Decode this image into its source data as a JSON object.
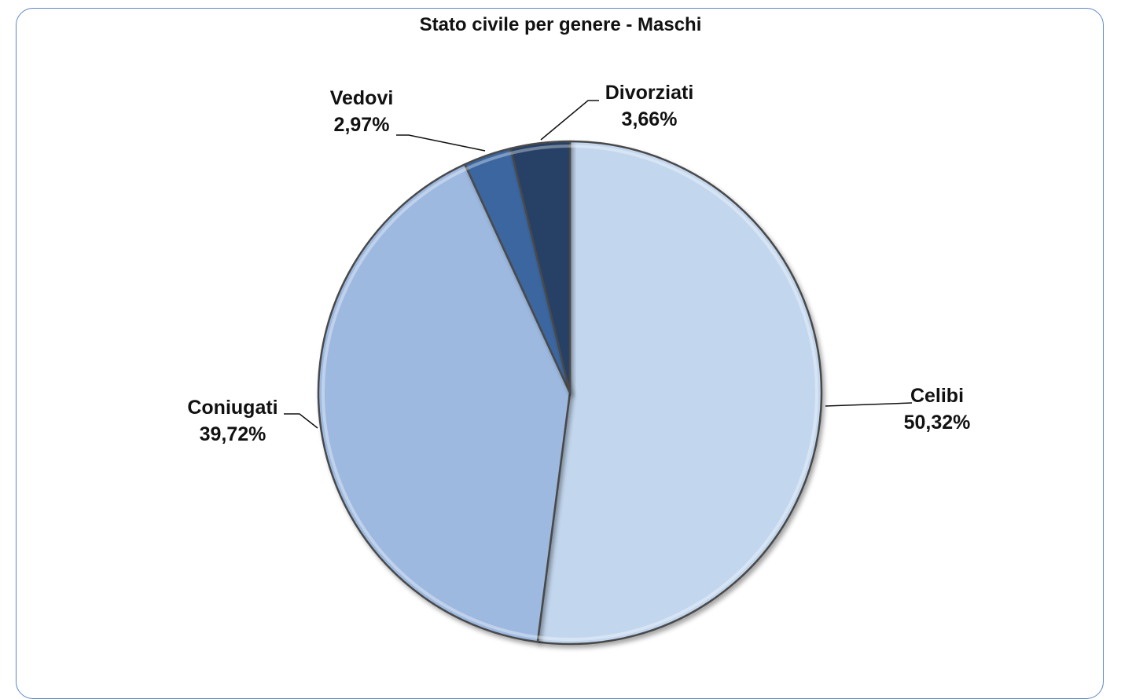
{
  "chart_data": {
    "type": "pie",
    "title": "Stato civile per genere - Maschi",
    "categories": [
      "Celibi",
      "Coniugati",
      "Vedovi",
      "Divorziati"
    ],
    "values": [
      50.32,
      39.72,
      2.97,
      3.66
    ],
    "value_labels": [
      "50,32%",
      "39,72%",
      "2,97%",
      "3,66%"
    ],
    "colors": [
      "#c2d6ee",
      "#9db9e0",
      "#3b66a0",
      "#263f66"
    ],
    "legend": "none"
  }
}
